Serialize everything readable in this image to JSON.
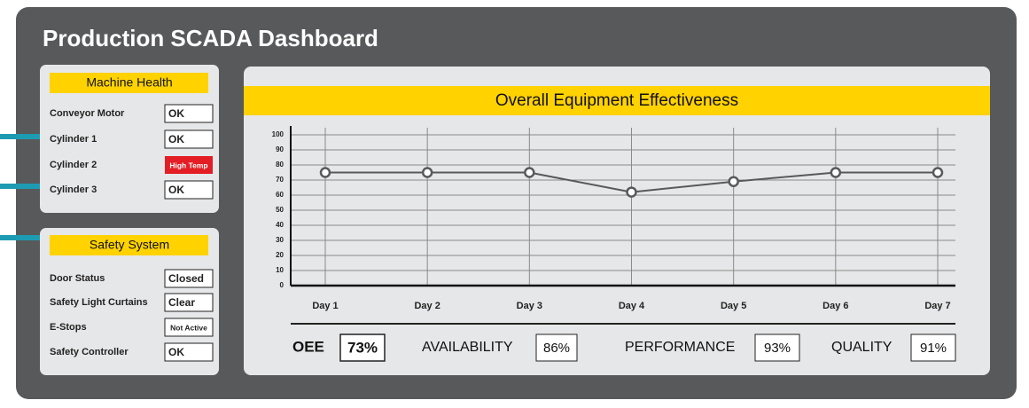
{
  "title": "Production SCADA Dashboard",
  "machine_health": {
    "title": "Machine Health",
    "rows": [
      {
        "label": "Conveyor Motor",
        "status": "OK"
      },
      {
        "label": "Cylinder 1",
        "status": "OK"
      },
      {
        "label": "Cylinder 2",
        "status": "High Temp",
        "status_color": "#e31e24"
      },
      {
        "label": "Cylinder 3",
        "status": "OK"
      }
    ]
  },
  "safety_system": {
    "title": "Safety System",
    "rows": [
      {
        "label": "Door Status",
        "status": "Closed"
      },
      {
        "label": "Safety Light Curtains",
        "status": "Clear"
      },
      {
        "label": "E-Stops",
        "status": "Not Active"
      },
      {
        "label": "Safety Controller",
        "status": "OK"
      }
    ]
  },
  "chart_data": {
    "type": "line",
    "title": "Overall Equipment Effectiveness",
    "categories": [
      "Day 1",
      "Day 2",
      "Day 3",
      "Day 4",
      "Day 5",
      "Day 6",
      "Day 7"
    ],
    "values": [
      75,
      75,
      75,
      62,
      69,
      75,
      75
    ],
    "color": "#58595b",
    "ylim": [
      0,
      100
    ],
    "yticks": [
      0,
      10,
      20,
      30,
      40,
      50,
      60,
      70,
      80,
      90,
      100
    ],
    "grid": true
  },
  "kpis": [
    {
      "label": "OEE",
      "value": "73%"
    },
    {
      "label": "AVAILABILITY",
      "value": "86%"
    },
    {
      "label": "PERFORMANCE",
      "value": "93%"
    },
    {
      "label": "QUALITY",
      "value": "91%"
    }
  ]
}
